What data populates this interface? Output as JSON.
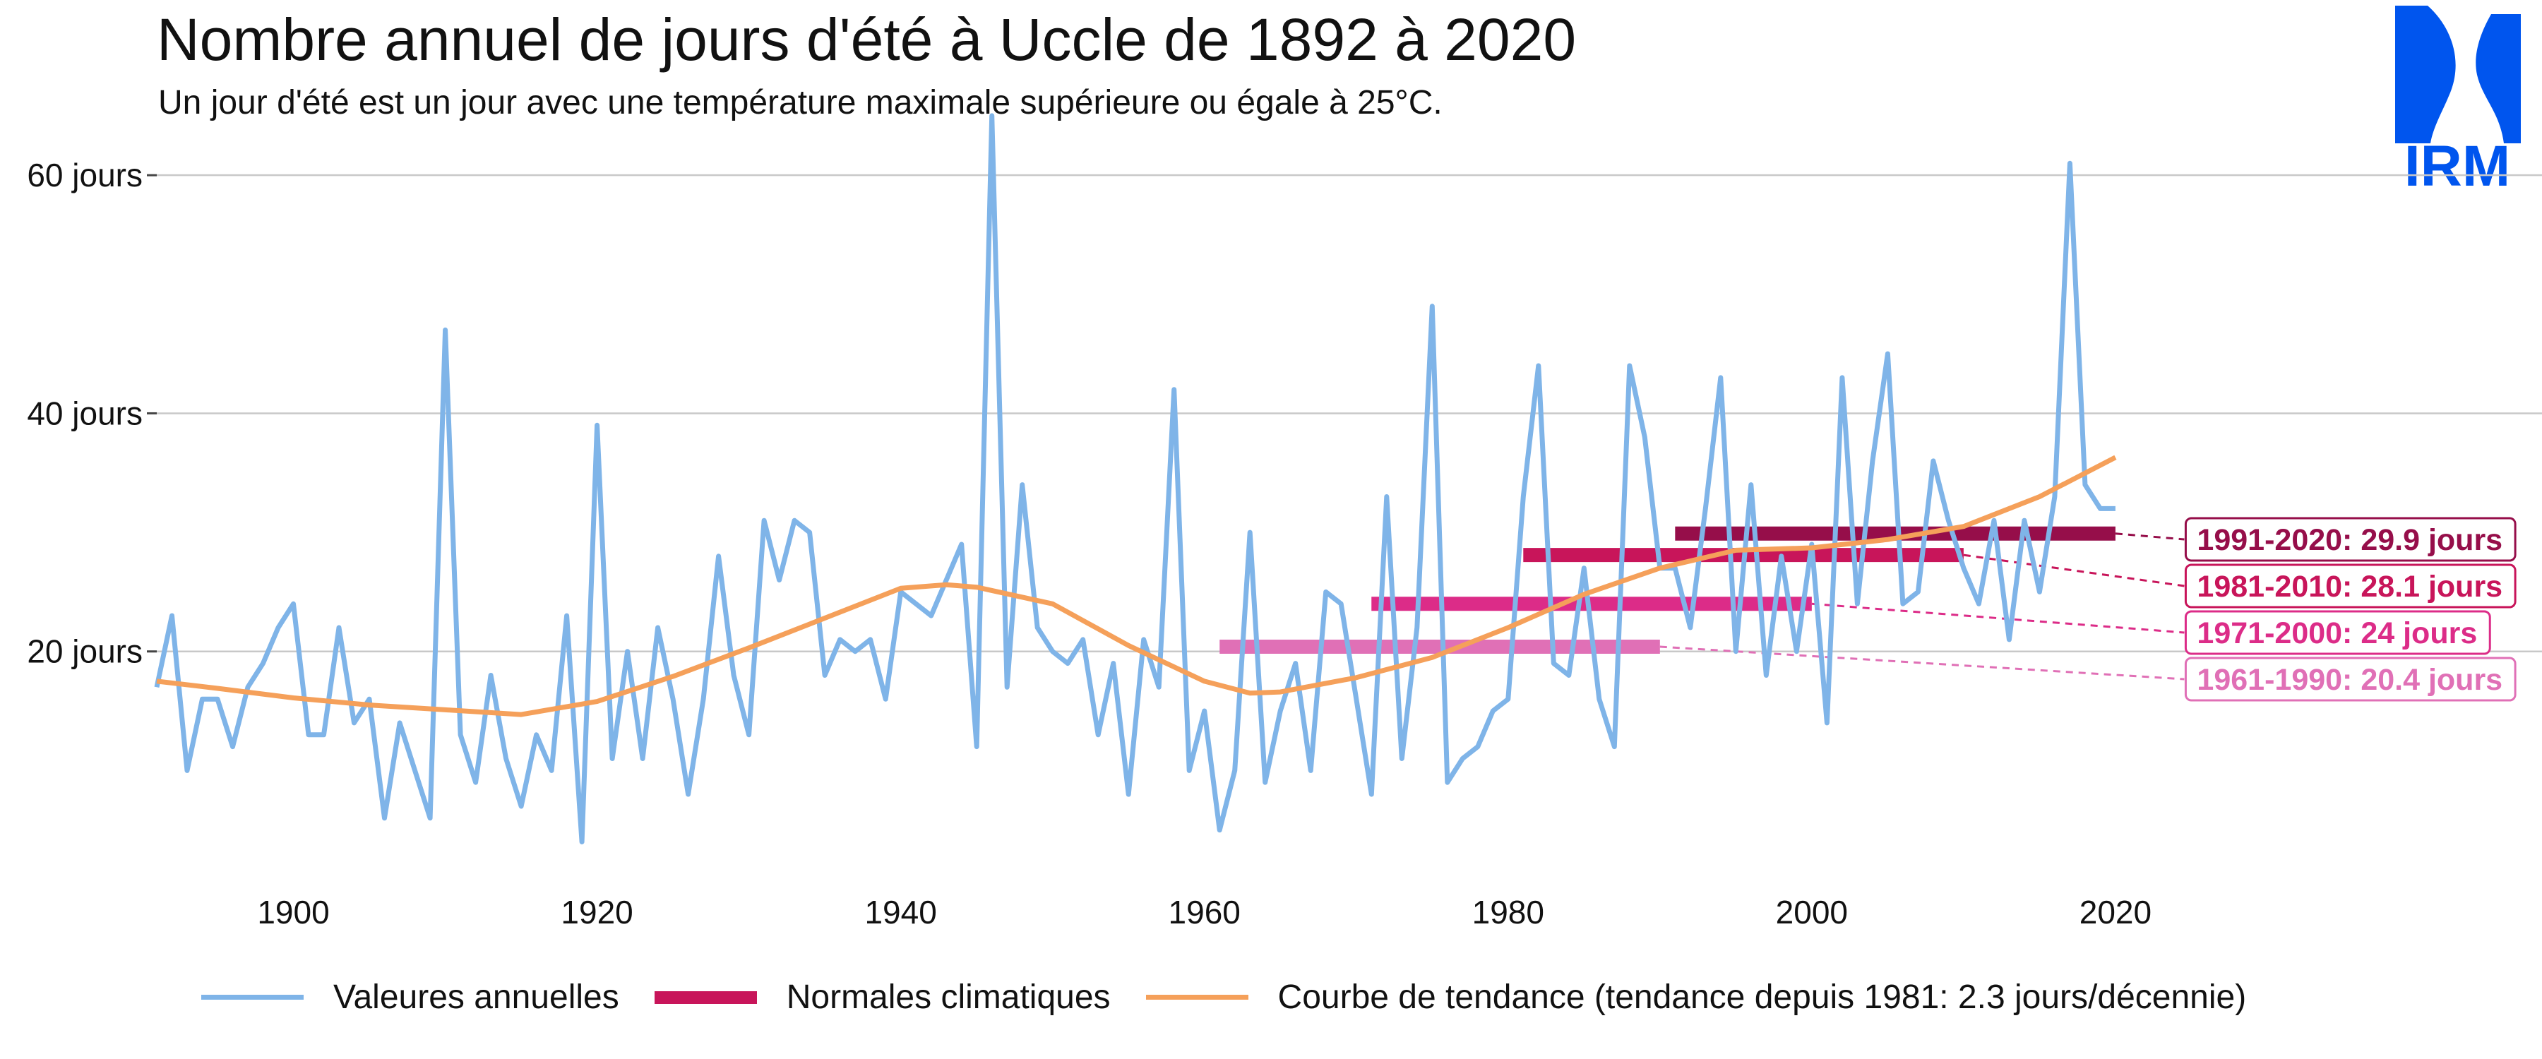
{
  "header": {
    "title": "Nombre annuel de jours d'été à Uccle de 1892 à 2020",
    "subtitle": "Un jour d'été est un jour avec une température maximale supérieure ou égale à 25°C."
  },
  "logo": {
    "text": "IRM",
    "color": "#0055ee",
    "icon": "irm-logo-icon"
  },
  "legend": {
    "annual": "Valeures annuelles",
    "normals": "Normales climatiques",
    "trend": "Courbe de tendance (tendance depuis 1981: 2.3 jours/décennie)"
  },
  "colors": {
    "annual": "#7fb4e8",
    "trend": "#f5a05a",
    "normals_legend": "#c8155a",
    "grid": "#c8c8c8"
  },
  "chart_data": {
    "type": "line",
    "xlim": [
      1891,
      2048
    ],
    "ylim": [
      0,
      66
    ],
    "x_ticks": [
      1900,
      1920,
      1940,
      1960,
      1980,
      2000,
      2020
    ],
    "y_ticks": [
      20,
      40,
      60
    ],
    "y_tick_labels": [
      "20 jours",
      "40 jours",
      "60 jours"
    ],
    "series": [
      {
        "name": "Valeurs annuelles",
        "x": [
          1891,
          1892,
          1893,
          1894,
          1895,
          1896,
          1897,
          1898,
          1899,
          1900,
          1901,
          1902,
          1903,
          1904,
          1905,
          1906,
          1907,
          1908,
          1909,
          1910,
          1911,
          1912,
          1913,
          1914,
          1915,
          1916,
          1917,
          1918,
          1919,
          1920,
          1921,
          1922,
          1923,
          1924,
          1925,
          1926,
          1927,
          1928,
          1929,
          1930,
          1931,
          1932,
          1933,
          1934,
          1935,
          1936,
          1937,
          1938,
          1939,
          1940,
          1941,
          1942,
          1943,
          1944,
          1945,
          1946,
          1947,
          1948,
          1949,
          1950,
          1951,
          1952,
          1953,
          1954,
          1955,
          1956,
          1957,
          1958,
          1959,
          1960,
          1961,
          1962,
          1963,
          1964,
          1965,
          1966,
          1967,
          1968,
          1969,
          1970,
          1971,
          1972,
          1973,
          1974,
          1975,
          1976,
          1977,
          1978,
          1979,
          1980,
          1981,
          1982,
          1983,
          1984,
          1985,
          1986,
          1987,
          1988,
          1989,
          1990,
          1991,
          1992,
          1993,
          1994,
          1995,
          1996,
          1997,
          1998,
          1999,
          2000,
          2001,
          2002,
          2003,
          2004,
          2005,
          2006,
          2007,
          2008,
          2009,
          2010,
          2011,
          2012,
          2013,
          2014,
          2015,
          2016,
          2017,
          2018,
          2019,
          2020
        ],
        "values": [
          17,
          23,
          10,
          16,
          16,
          12,
          17,
          19,
          22,
          24,
          13,
          13,
          22,
          14,
          16,
          6,
          14,
          10,
          6,
          47,
          13,
          9,
          18,
          11,
          7,
          13,
          10,
          23,
          4,
          39,
          11,
          20,
          11,
          22,
          16,
          8,
          16,
          28,
          18,
          13,
          31,
          26,
          31,
          30,
          18,
          21,
          20,
          21,
          16,
          25,
          24,
          23,
          26,
          29,
          12,
          65,
          17,
          34,
          22,
          20,
          19,
          21,
          13,
          19,
          8,
          21,
          17,
          42,
          10,
          15,
          5,
          10,
          30,
          9,
          15,
          19,
          10,
          25,
          24,
          16,
          8,
          33,
          11,
          22,
          49,
          9,
          11,
          12,
          15,
          16,
          33,
          44,
          19,
          18,
          27,
          16,
          12,
          44,
          38,
          27,
          27,
          22,
          32,
          43,
          20,
          34,
          18,
          28,
          20,
          29,
          14,
          43,
          24,
          36,
          45,
          24,
          25,
          36,
          31,
          27,
          24,
          31,
          21,
          31,
          25,
          33,
          61,
          34,
          32,
          32
        ]
      },
      {
        "name": "Courbe de tendance",
        "x": [
          1891,
          1895,
          1900,
          1905,
          1910,
          1915,
          1920,
          1925,
          1930,
          1935,
          1940,
          1943,
          1945,
          1950,
          1955,
          1960,
          1963,
          1965,
          1970,
          1975,
          1980,
          1985,
          1990,
          1995,
          2000,
          2005,
          2010,
          2015,
          2020
        ],
        "values": [
          17.5,
          16.9,
          16.1,
          15.5,
          15.1,
          14.7,
          15.8,
          17.9,
          20.3,
          22.8,
          25.3,
          25.6,
          25.4,
          24,
          20.5,
          17.5,
          16.5,
          16.6,
          17.8,
          19.5,
          22,
          24.8,
          27,
          28.5,
          28.7,
          29.4,
          30.5,
          33,
          36.3
        ]
      }
    ],
    "normals": [
      {
        "label": "1991-2020: 29.9 jours",
        "start": 1991,
        "end": 2020,
        "value": 29.9,
        "color": "#960e4a"
      },
      {
        "label": "1981-2010: 28.1 jours",
        "start": 1981,
        "end": 2010,
        "value": 28.1,
        "color": "#c8155a"
      },
      {
        "label": "1971-2000: 24 jours",
        "start": 1971,
        "end": 2000,
        "value": 24,
        "color": "#dc2c88"
      },
      {
        "label": "1961-1990: 20.4 jours",
        "start": 1961,
        "end": 1990,
        "value": 20.4,
        "color": "#e070b6"
      }
    ]
  }
}
